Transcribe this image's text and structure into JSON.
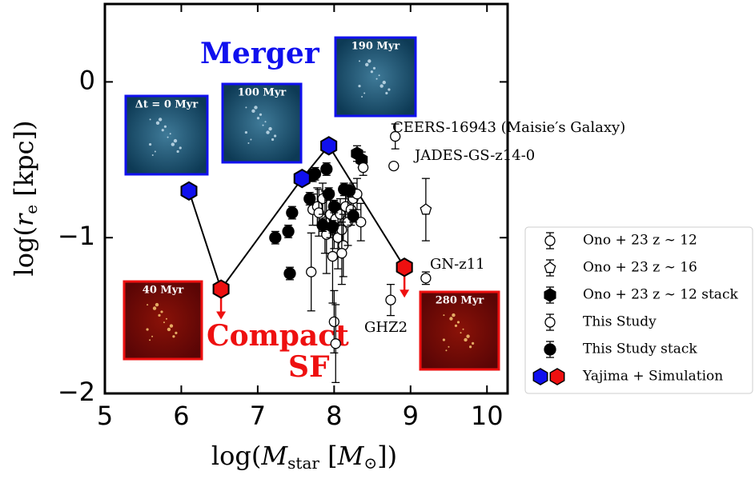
{
  "chart_data": {
    "type": "scatter",
    "xlabel_parts": [
      "log(",
      "M",
      "star",
      " [",
      "M",
      "⊙",
      "])"
    ],
    "ylabel_parts": [
      "log(",
      "r",
      "e",
      " [kpc])"
    ],
    "xlim": [
      5,
      10.27
    ],
    "ylim": [
      -2,
      0.5
    ],
    "xticks": [
      5,
      6,
      7,
      8,
      9,
      10
    ],
    "yticks": [
      {
        "value": 0,
        "label": "0"
      },
      {
        "value": -1,
        "label": "−1"
      },
      {
        "value": -2,
        "label": "−2"
      }
    ],
    "series": [
      {
        "name": "Ono + 23 z ∼ 12",
        "marker": "circle-open",
        "color": "#000000",
        "x": [
          8.8,
          8.78,
          9.2,
          8.74
        ],
        "y": [
          -0.35,
          -0.54,
          -1.26,
          -1.4
        ],
        "yerr": [
          0.08,
          0.02,
          0.04,
          0.1
        ]
      },
      {
        "name": "Ono + 23 z ∼ 16",
        "marker": "pentagon-open",
        "color": "#000000",
        "x": [
          9.2
        ],
        "y": [
          -0.82
        ],
        "yerr": [
          0.2
        ]
      },
      {
        "name": "Ono + 23 z ∼ 12 stack",
        "marker": "hexagon",
        "color": "#000000",
        "x": [
          8.3,
          8.36
        ],
        "y": [
          -0.46,
          -0.5
        ],
        "yerr": [
          0.05,
          0.05
        ]
      },
      {
        "name": "This Study",
        "marker": "circle-open",
        "color": "#000000",
        "x": [
          7.72,
          7.78,
          7.8,
          7.85,
          7.88,
          7.9,
          7.95,
          7.98,
          8.0,
          8.02,
          8.05,
          8.08,
          8.1,
          8.12,
          8.15,
          8.18,
          8.22,
          8.25,
          8.3,
          8.35,
          8.38,
          8.0,
          8.02,
          7.7,
          8.1
        ],
        "y": [
          -0.82,
          -0.8,
          -0.84,
          -0.75,
          -0.9,
          -0.98,
          -0.85,
          -1.12,
          -0.92,
          -0.88,
          -1.0,
          -0.85,
          -0.95,
          -1.05,
          -0.8,
          -0.9,
          -0.82,
          -0.75,
          -0.72,
          -0.9,
          -0.55,
          -1.54,
          -1.68,
          -1.22,
          -1.1
        ],
        "yerr": [
          0.1,
          0.12,
          0.15,
          0.1,
          0.2,
          0.25,
          0.15,
          0.3,
          0.15,
          0.1,
          0.2,
          0.1,
          0.15,
          0.2,
          0.1,
          0.15,
          0.1,
          0.1,
          0.1,
          0.12,
          0.05,
          0.2,
          0.25,
          0.25,
          0.2
        ]
      },
      {
        "name": "This Study stack",
        "marker": "circle",
        "color": "#000000",
        "x": [
          7.23,
          7.4,
          7.45,
          7.42,
          7.68,
          7.72,
          7.9,
          7.93,
          7.85,
          7.98,
          8.13,
          8.2,
          8.25,
          8.0,
          7.75
        ],
        "y": [
          -1.0,
          -0.96,
          -0.84,
          -1.23,
          -0.75,
          -0.6,
          -0.56,
          -0.72,
          -0.92,
          -0.93,
          -0.69,
          -0.7,
          -0.86,
          -0.8,
          -0.59
        ],
        "yerr": [
          0.04,
          0.04,
          0.04,
          0.04,
          0.04,
          0.04,
          0.04,
          0.04,
          0.04,
          0.04,
          0.04,
          0.04,
          0.04,
          0.04,
          0.04
        ]
      },
      {
        "name": "Yajima + Simulation",
        "marker": "hexagon-line",
        "color": "#000000",
        "x": [
          6.1,
          6.52,
          7.58,
          7.93,
          8.92
        ],
        "y": [
          -0.7,
          -1.33,
          -0.62,
          -0.41,
          -1.19
        ],
        "colors": [
          "#1010ee",
          "#ee1010",
          "#1010ee",
          "#1010ee",
          "#ee1010"
        ],
        "upper_limit": [
          false,
          true,
          false,
          false,
          true
        ]
      }
    ],
    "annotations": [
      {
        "text": "CEERS-16943 (Maisie′s Galaxy)"
      },
      {
        "text": "JADES-GS-z14-0"
      },
      {
        "text": "GN-z11"
      },
      {
        "text": "GHZ2"
      }
    ],
    "merger_label": "Merger",
    "compact_label": [
      "Compact",
      "SF"
    ],
    "insets": [
      {
        "label": "Δt = 0 Myr",
        "color": "#1010ee"
      },
      {
        "label": "100 Myr",
        "color": "#1010ee"
      },
      {
        "label": "190 Myr",
        "color": "#1010ee"
      },
      {
        "label": "40 Myr",
        "color": "#ee1010"
      },
      {
        "label": "280 Myr",
        "color": "#ee1010"
      }
    ]
  }
}
